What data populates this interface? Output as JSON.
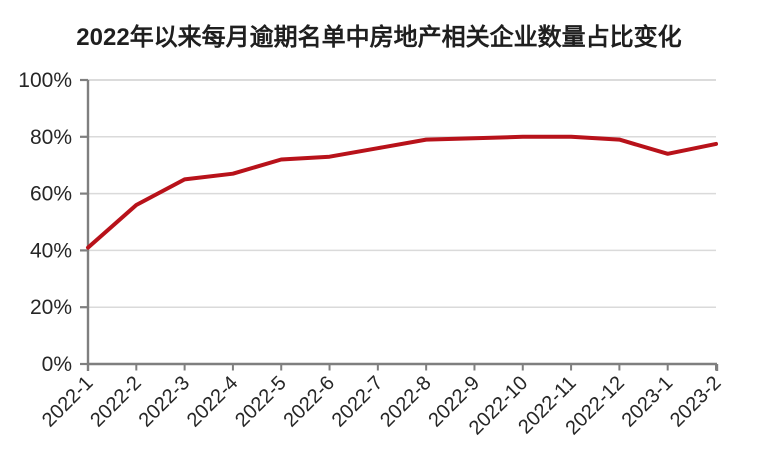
{
  "page": {
    "background": "#ffffff"
  },
  "chart_data": {
    "type": "line",
    "title": "2022年以来每月逾期名单中房地产相关企业数量占比变化",
    "categories": [
      "2022-1",
      "2022-2",
      "2022-3",
      "2022-4",
      "2022-5",
      "2022-6",
      "2022-7",
      "2022-8",
      "2022-9",
      "2022-10",
      "2022-11",
      "2022-12",
      "2023-1",
      "2023-2"
    ],
    "values": [
      41,
      56,
      65,
      67,
      72,
      73,
      76,
      79,
      79.5,
      80,
      80,
      79,
      74,
      77.5
    ],
    "xlabel": "",
    "ylabel": "",
    "ylim": [
      0,
      100
    ],
    "ytick_step": 20,
    "ytick_labels": [
      "0%",
      "20%",
      "40%",
      "60%",
      "80%",
      "100%"
    ],
    "grid": "horizontal gridlines at 20% steps",
    "legend": "none",
    "style": {
      "line_color": "#b8121a",
      "line_width": 4,
      "grid_color": "#dadada",
      "top_grid_color": "#cfcfcf",
      "axis_color": "#7f7f7f",
      "label_color": "#262626",
      "title_color": "#1f1f1f"
    }
  }
}
